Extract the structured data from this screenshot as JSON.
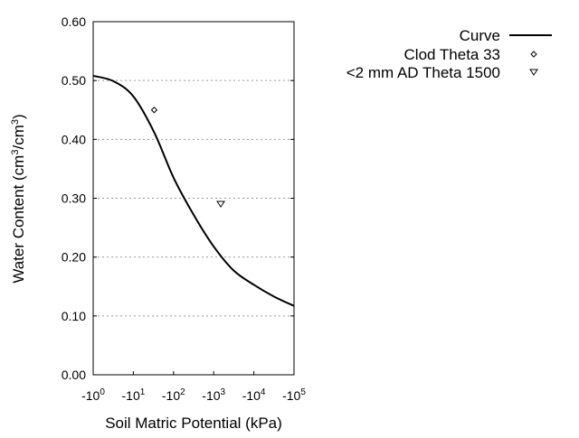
{
  "chart_data": {
    "type": "line",
    "title": "",
    "xlabel": "Soil Matric Potential (kPa)",
    "ylabel": "Water Content (cm3/cm3)",
    "ylabel_parts": {
      "pre": "Water Content (cm",
      "sup1": "3",
      "mid": "/cm",
      "sup2": "3",
      "post": ")"
    },
    "x_scale": "log (negative)",
    "xlim": [
      1,
      100000
    ],
    "ylim": [
      0,
      0.6
    ],
    "x_ticks": [
      {
        "base": "-10",
        "exp": "0",
        "value": 1
      },
      {
        "base": "-10",
        "exp": "1",
        "value": 10
      },
      {
        "base": "-10",
        "exp": "2",
        "value": 100
      },
      {
        "base": "-10",
        "exp": "3",
        "value": 1000
      },
      {
        "base": "-10",
        "exp": "4",
        "value": 10000
      },
      {
        "base": "-10",
        "exp": "5",
        "value": 100000
      }
    ],
    "y_ticks": [
      "0.00",
      "0.10",
      "0.20",
      "0.30",
      "0.40",
      "0.50",
      "0.60"
    ],
    "grid": "horizontal dotted",
    "legend_placement": "top-right outside",
    "series": [
      {
        "name": "Curve",
        "style": "line",
        "color": "#000000",
        "x": [
          1,
          3.16,
          10,
          33,
          100,
          316,
          1000,
          3162,
          10000,
          31623,
          100000
        ],
        "y": [
          0.508,
          0.499,
          0.473,
          0.412,
          0.335,
          0.272,
          0.218,
          0.177,
          0.153,
          0.133,
          0.117
        ]
      },
      {
        "name": "Clod Theta 33",
        "style": "diamond",
        "color": "#000000",
        "x": [
          33
        ],
        "y": [
          0.45
        ]
      },
      {
        "name": "<2 mm AD Theta 1500",
        "style": "triangle-down",
        "color": "#000000",
        "x": [
          1500
        ],
        "y": [
          0.29
        ]
      }
    ]
  }
}
